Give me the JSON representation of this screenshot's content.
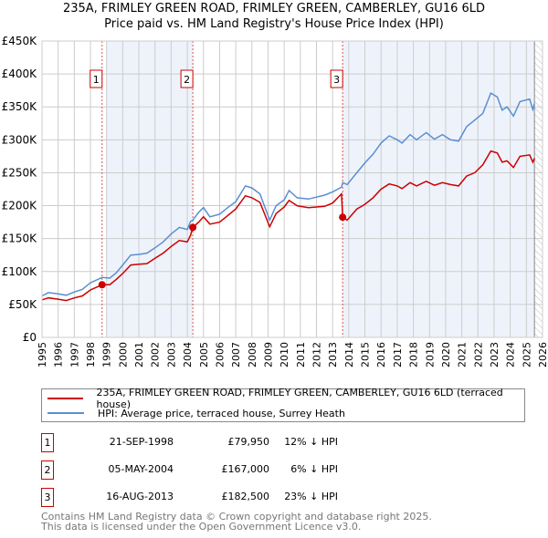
{
  "chart_data": {
    "type": "line",
    "title": "235A, FRIMLEY GREEN ROAD, FRIMLEY GREEN, CAMBERLEY, GU16 6LD",
    "subtitle": "Price paid vs. HM Land Registry's House Price Index (HPI)",
    "xlim": [
      1995,
      2026
    ],
    "ylim": [
      0,
      450000
    ],
    "x_ticks": [
      "1995",
      "1996",
      "1997",
      "1998",
      "1999",
      "2000",
      "2001",
      "2002",
      "2003",
      "2004",
      "2005",
      "2006",
      "2007",
      "2008",
      "2009",
      "2010",
      "2011",
      "2012",
      "2013",
      "2014",
      "2015",
      "2016",
      "2017",
      "2018",
      "2019",
      "2020",
      "2021",
      "2022",
      "2023",
      "2024",
      "2025",
      "2026"
    ],
    "y_ticks": [
      {
        "v": 0,
        "label": "£0"
      },
      {
        "v": 50000,
        "label": "£50K"
      },
      {
        "v": 100000,
        "label": "£100K"
      },
      {
        "v": 150000,
        "label": "£150K"
      },
      {
        "v": 200000,
        "label": "£200K"
      },
      {
        "v": 250000,
        "label": "£250K"
      },
      {
        "v": 300000,
        "label": "£300K"
      },
      {
        "v": 350000,
        "label": "£350K"
      },
      {
        "v": 400000,
        "label": "£400K"
      },
      {
        "v": 450000,
        "label": "£450K"
      }
    ],
    "grid": true,
    "shaded_ranges": [
      [
        1999.0,
        2004.34
      ],
      [
        2013.62,
        2025.5
      ]
    ],
    "hatched_from": 2025.5,
    "series": [
      {
        "name": "235A, FRIMLEY GREEN ROAD, FRIMLEY GREEN, CAMBERLEY, GU16 6LD (terraced house)",
        "color": "#cc0000",
        "x": [
          1995,
          1995.4,
          1996,
          1996.5,
          1997,
          1997.5,
          1998,
          1998.72,
          1999.2,
          1999.6,
          2000,
          2000.5,
          2001,
          2001.5,
          2002,
          2002.5,
          2003,
          2003.5,
          2004,
          2004.2,
          2004.34,
          2004.7,
          2005,
          2005.4,
          2006,
          2006.5,
          2007,
          2007.6,
          2008,
          2008.5,
          2009.1,
          2009.5,
          2010,
          2010.3,
          2010.8,
          2011.5,
          2012.5,
          2013,
          2013.55,
          2013.62,
          2013.9,
          2014.5,
          2015,
          2015.5,
          2016,
          2016.5,
          2017,
          2017.3,
          2017.8,
          2018.2,
          2018.8,
          2019.3,
          2019.8,
          2020.3,
          2020.8,
          2021.3,
          2021.8,
          2022.3,
          2022.8,
          2023.2,
          2023.5,
          2023.8,
          2024.2,
          2024.6,
          2025.2,
          2025.4,
          2025.5
        ],
        "y": [
          57000,
          60000,
          58000,
          56000,
          60000,
          63000,
          72000,
          79950,
          80000,
          88000,
          97000,
          110000,
          111000,
          112000,
          120000,
          128000,
          138000,
          147000,
          145000,
          155000,
          167000,
          175000,
          183000,
          172000,
          175000,
          185000,
          195000,
          215000,
          212000,
          205000,
          168000,
          188000,
          198000,
          208000,
          200000,
          197000,
          199000,
          204000,
          218000,
          182500,
          178000,
          195000,
          202000,
          212000,
          225000,
          233000,
          230000,
          226000,
          235000,
          230000,
          237000,
          231000,
          235000,
          232000,
          230000,
          245000,
          250000,
          262000,
          283000,
          280000,
          266000,
          268000,
          258000,
          275000,
          277000,
          266000,
          272000
        ]
      },
      {
        "name": "HPI: Average price, terraced house, Surrey Heath",
        "color": "#5b8fd0",
        "x": [
          1995,
          1995.4,
          1996,
          1996.5,
          1997,
          1997.5,
          1998,
          1998.72,
          1999.2,
          1999.6,
          2000,
          2000.5,
          2001,
          2001.5,
          2002,
          2002.5,
          2003,
          2003.5,
          2004,
          2004.2,
          2004.34,
          2004.7,
          2005,
          2005.4,
          2006,
          2006.5,
          2007,
          2007.6,
          2008,
          2008.5,
          2009.1,
          2009.5,
          2010,
          2010.3,
          2010.8,
          2011.5,
          2012.5,
          2013,
          2013.55,
          2013.62,
          2013.9,
          2014.5,
          2015,
          2015.5,
          2016,
          2016.5,
          2017,
          2017.3,
          2017.8,
          2018.2,
          2018.8,
          2019.3,
          2019.8,
          2020.3,
          2020.8,
          2021.3,
          2021.8,
          2022.3,
          2022.8,
          2023.2,
          2023.5,
          2023.8,
          2024.2,
          2024.6,
          2025.2,
          2025.4,
          2025.5
        ],
        "y": [
          63000,
          68000,
          66000,
          64000,
          69000,
          73000,
          83000,
          91000,
          90000,
          98000,
          110000,
          125000,
          126000,
          128000,
          136000,
          145000,
          157000,
          167000,
          164000,
          176000,
          178000,
          190000,
          197000,
          183000,
          187000,
          197000,
          206000,
          230000,
          227000,
          218000,
          178000,
          200000,
          209000,
          223000,
          212000,
          210000,
          216000,
          221000,
          228000,
          235000,
          232000,
          250000,
          265000,
          278000,
          295000,
          306000,
          300000,
          295000,
          308000,
          300000,
          311000,
          301000,
          308000,
          300000,
          298000,
          320000,
          330000,
          340000,
          371000,
          365000,
          345000,
          350000,
          336000,
          358000,
          362000,
          346000,
          355000
        ]
      }
    ],
    "sales": [
      {
        "label": "1",
        "x": 1998.72,
        "y": 79950
      },
      {
        "label": "2",
        "x": 2004.34,
        "y": 167000
      },
      {
        "label": "3",
        "x": 2013.62,
        "y": 182500
      }
    ]
  },
  "legend": {
    "red_label": "235A, FRIMLEY GREEN ROAD, FRIMLEY GREEN, CAMBERLEY, GU16 6LD (terraced house)",
    "blue_label": "HPI: Average price, terraced house, Surrey Heath"
  },
  "transactions": [
    {
      "num": "1",
      "date": "21-SEP-1998",
      "price": "£79,950",
      "hpi": "12% ↓ HPI"
    },
    {
      "num": "2",
      "date": "05-MAY-2004",
      "price": "£167,000",
      "hpi": "6% ↓ HPI"
    },
    {
      "num": "3",
      "date": "16-AUG-2013",
      "price": "£182,500",
      "hpi": "23% ↓ HPI"
    }
  ],
  "footer": {
    "line1": "Contains HM Land Registry data © Crown copyright and database right 2025.",
    "line2": "This data is licensed under the Open Government Licence v3.0."
  }
}
